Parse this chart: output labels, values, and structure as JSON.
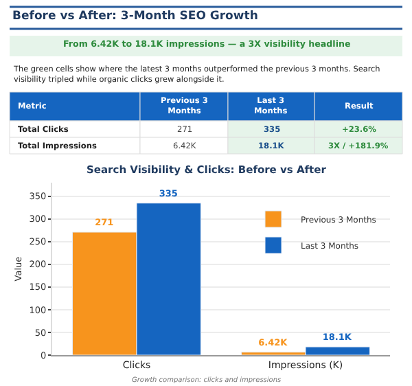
{
  "chart_data": {
    "type": "bar",
    "title": "Search Visibility & Clicks: Before vs After",
    "categories": [
      "Clicks",
      "Impressions (K)"
    ],
    "series": [
      {
        "name": "Previous 3 Months",
        "color": "#f7941d",
        "values": [
          271,
          6.42
        ],
        "value_labels": [
          "271",
          "6.42K"
        ]
      },
      {
        "name": "Last 3 Months",
        "color": "#1565c0",
        "values": [
          335,
          18.1
        ],
        "value_labels": [
          "335",
          "18.1K"
        ]
      }
    ],
    "ylabel": "Value",
    "ylim": [
      0,
      380
    ],
    "yticks": [
      0,
      50,
      100,
      150,
      200,
      250,
      300,
      350
    ],
    "grid": "y",
    "legend": "top right",
    "annotations": [
      "Before vs After: 3-Month SEO Growth",
      "From 6.42K to 18.1K impressions — a 3X visibility headline",
      "The green cells show where the latest 3 months outperformed the previous 3 months. Search visibility tripled while organic clicks grew alongside it.",
      "Metric",
      "Previous 3 Months",
      "Last 3 Months",
      "Result",
      "Total Clicks",
      "271",
      "335",
      "+23.6%",
      "Total Impressions",
      "6.42K",
      "18.1K",
      "3X / +181.9%",
      "Growth comparison: clicks and impressions"
    ]
  }
}
